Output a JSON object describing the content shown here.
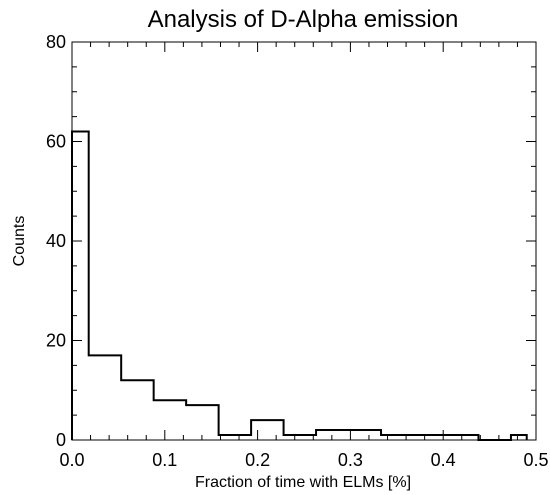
{
  "chart_data": {
    "type": "histogram",
    "title": "Analysis of D-Alpha emission",
    "xlabel": "Fraction of time with ELMs [%]",
    "ylabel": "Counts",
    "xlim": [
      0.0,
      0.5
    ],
    "ylim": [
      0,
      80
    ],
    "xticks": [
      0.0,
      0.1,
      0.2,
      0.3,
      0.4,
      0.5
    ],
    "xtick_labels": [
      "0.0",
      "0.1",
      "0.2",
      "0.3",
      "0.4",
      "0.5"
    ],
    "yticks": [
      0,
      20,
      40,
      60,
      80
    ],
    "ytick_labels": [
      "0",
      "20",
      "40",
      "60",
      "80"
    ],
    "grid": false,
    "bins": [
      {
        "x0": 0.0,
        "x1": 0.018,
        "count": 62
      },
      {
        "x0": 0.018,
        "x1": 0.053,
        "count": 17
      },
      {
        "x0": 0.053,
        "x1": 0.088,
        "count": 12
      },
      {
        "x0": 0.088,
        "x1": 0.123,
        "count": 8
      },
      {
        "x0": 0.123,
        "x1": 0.158,
        "count": 7
      },
      {
        "x0": 0.158,
        "x1": 0.193,
        "count": 1
      },
      {
        "x0": 0.193,
        "x1": 0.228,
        "count": 4
      },
      {
        "x0": 0.228,
        "x1": 0.263,
        "count": 1
      },
      {
        "x0": 0.263,
        "x1": 0.298,
        "count": 2
      },
      {
        "x0": 0.298,
        "x1": 0.333,
        "count": 2
      },
      {
        "x0": 0.333,
        "x1": 0.368,
        "count": 1
      },
      {
        "x0": 0.368,
        "x1": 0.403,
        "count": 1
      },
      {
        "x0": 0.403,
        "x1": 0.438,
        "count": 1
      },
      {
        "x0": 0.438,
        "x1": 0.473,
        "count": 0
      },
      {
        "x0": 0.473,
        "x1": 0.49,
        "count": 1
      }
    ]
  }
}
